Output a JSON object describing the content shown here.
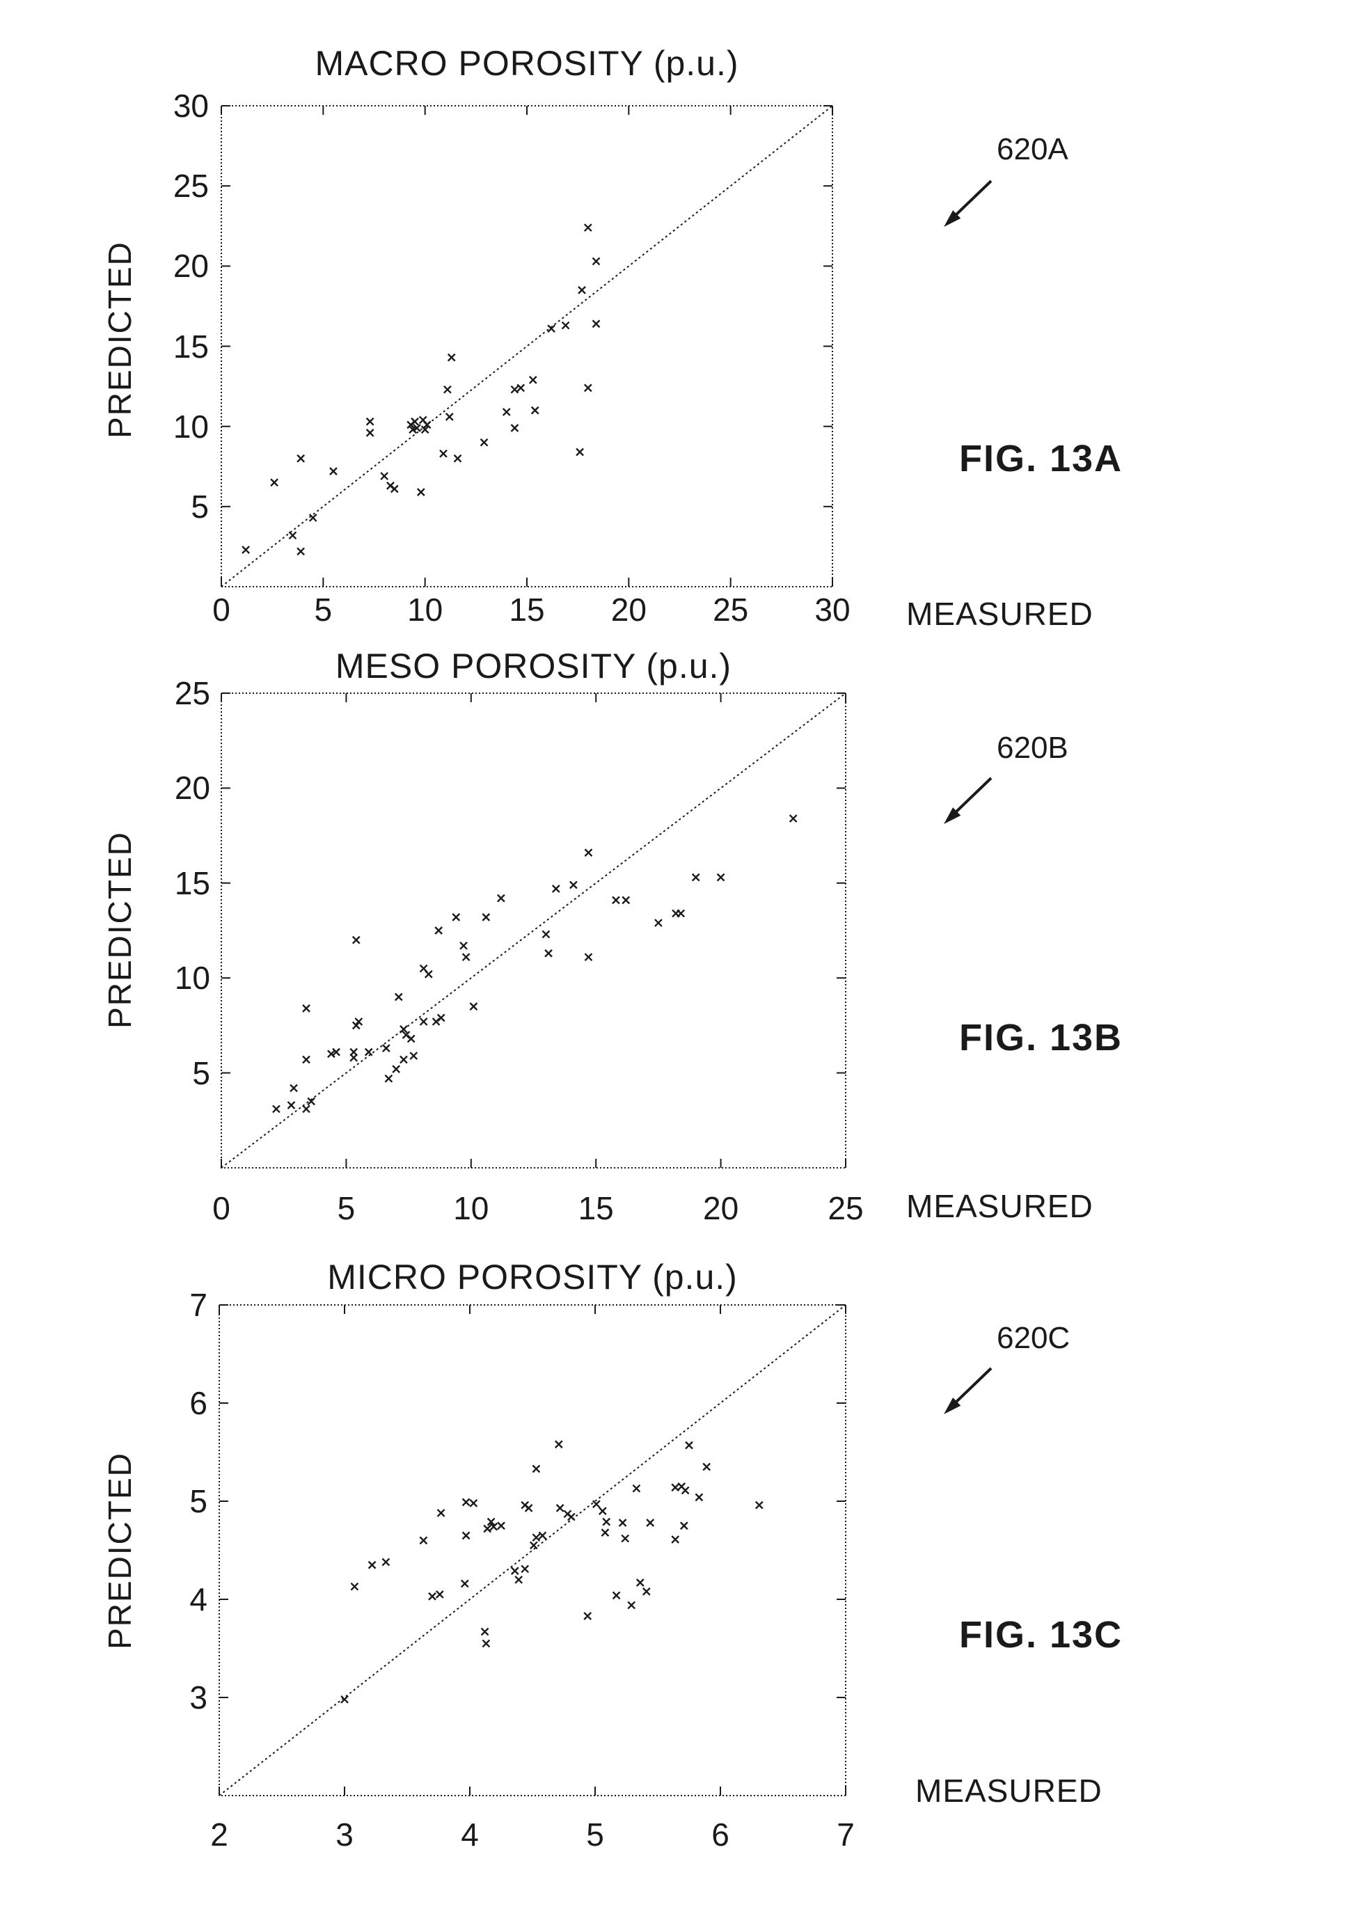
{
  "page": {
    "background": "#ffffff",
    "ink_color": "#1a1a1a"
  },
  "chart_data": [
    {
      "type": "scatter",
      "title": "MACRO POROSITY (p.u.)",
      "xlabel": "MEASURED",
      "ylabel": "PREDICTED",
      "ref_label": "620A",
      "fig_label": "FIG. 13A",
      "xlim": [
        0,
        30
      ],
      "ylim": [
        0,
        30
      ],
      "x_ticks": [
        0,
        5,
        10,
        15,
        20,
        25,
        30
      ],
      "y_ticks": [
        5,
        10,
        15,
        20,
        25,
        30
      ],
      "marker": "x-cross",
      "grid": false,
      "reference_line": "dotted diagonal y = x from (0,0) to (30,30)",
      "points": [
        [
          1.2,
          2.3
        ],
        [
          2.6,
          6.5
        ],
        [
          3.5,
          3.2
        ],
        [
          3.9,
          8.0
        ],
        [
          3.9,
          2.2
        ],
        [
          4.5,
          4.3
        ],
        [
          5.5,
          7.2
        ],
        [
          7.3,
          10.3
        ],
        [
          7.3,
          9.6
        ],
        [
          8.0,
          6.9
        ],
        [
          8.3,
          6.3
        ],
        [
          8.5,
          6.1
        ],
        [
          9.3,
          10.1
        ],
        [
          9.4,
          9.8
        ],
        [
          9.5,
          10.3
        ],
        [
          9.6,
          9.9
        ],
        [
          9.9,
          10.4
        ],
        [
          10.0,
          9.8
        ],
        [
          10.1,
          10.1
        ],
        [
          9.8,
          5.9
        ],
        [
          10.9,
          8.3
        ],
        [
          11.1,
          12.3
        ],
        [
          11.2,
          10.6
        ],
        [
          11.3,
          14.3
        ],
        [
          11.6,
          8.0
        ],
        [
          12.9,
          9.0
        ],
        [
          14.0,
          10.9
        ],
        [
          14.4,
          9.9
        ],
        [
          14.4,
          12.3
        ],
        [
          14.7,
          12.4
        ],
        [
          15.3,
          12.9
        ],
        [
          15.4,
          11.0
        ],
        [
          16.2,
          16.1
        ],
        [
          16.9,
          16.3
        ],
        [
          17.6,
          8.4
        ],
        [
          17.7,
          18.5
        ],
        [
          18.0,
          12.4
        ],
        [
          18.0,
          22.4
        ],
        [
          18.4,
          20.3
        ],
        [
          18.4,
          16.4
        ]
      ]
    },
    {
      "type": "scatter",
      "title": "MESO POROSITY (p.u.)",
      "xlabel": "MEASURED",
      "ylabel": "PREDICTED",
      "ref_label": "620B",
      "fig_label": "FIG. 13B",
      "xlim": [
        0,
        25
      ],
      "ylim": [
        0,
        25
      ],
      "x_ticks": [
        0,
        5,
        10,
        15,
        20,
        25
      ],
      "y_ticks": [
        5,
        10,
        15,
        20,
        25
      ],
      "marker": "x-cross",
      "grid": false,
      "reference_line": "dotted diagonal y = x from (0,0) to (25,25)",
      "points": [
        [
          2.2,
          3.1
        ],
        [
          2.8,
          3.3
        ],
        [
          2.9,
          4.2
        ],
        [
          3.4,
          3.1
        ],
        [
          3.4,
          5.7
        ],
        [
          3.4,
          8.4
        ],
        [
          3.6,
          3.5
        ],
        [
          4.4,
          6.0
        ],
        [
          4.6,
          6.1
        ],
        [
          5.3,
          5.8
        ],
        [
          5.3,
          6.1
        ],
        [
          5.4,
          7.5
        ],
        [
          5.4,
          12.0
        ],
        [
          5.5,
          7.7
        ],
        [
          5.9,
          6.1
        ],
        [
          6.6,
          6.3
        ],
        [
          6.7,
          4.7
        ],
        [
          7.0,
          5.2
        ],
        [
          7.1,
          9.0
        ],
        [
          7.3,
          5.7
        ],
        [
          7.3,
          7.3
        ],
        [
          7.4,
          7.0
        ],
        [
          7.6,
          6.8
        ],
        [
          7.7,
          5.9
        ],
        [
          8.1,
          7.7
        ],
        [
          8.1,
          10.5
        ],
        [
          8.3,
          10.2
        ],
        [
          8.6,
          7.7
        ],
        [
          8.8,
          7.9
        ],
        [
          8.7,
          12.5
        ],
        [
          9.4,
          13.2
        ],
        [
          9.7,
          11.7
        ],
        [
          9.8,
          11.1
        ],
        [
          10.1,
          8.5
        ],
        [
          10.6,
          13.2
        ],
        [
          11.2,
          14.2
        ],
        [
          13.0,
          12.3
        ],
        [
          13.1,
          11.3
        ],
        [
          13.4,
          14.7
        ],
        [
          14.1,
          14.9
        ],
        [
          14.7,
          11.1
        ],
        [
          14.7,
          16.6
        ],
        [
          15.8,
          14.1
        ],
        [
          16.2,
          14.1
        ],
        [
          17.5,
          12.9
        ],
        [
          18.2,
          13.4
        ],
        [
          18.4,
          13.4
        ],
        [
          19.0,
          15.3
        ],
        [
          20.0,
          15.3
        ],
        [
          22.9,
          18.4
        ]
      ]
    },
    {
      "type": "scatter",
      "title": "MICRO POROSITY (p.u.)",
      "xlabel": "MEASURED",
      "ylabel": "PREDICTED",
      "ref_label": "620C",
      "fig_label": "FIG. 13C",
      "xlim": [
        2,
        7
      ],
      "ylim": [
        2,
        7
      ],
      "x_ticks": [
        2,
        3,
        4,
        5,
        6,
        7
      ],
      "y_ticks": [
        3,
        4,
        5,
        6,
        7
      ],
      "marker": "x-cross",
      "grid": false,
      "reference_line": "dotted diagonal y = x from (2,2) to (7,7)",
      "points": [
        [
          3.0,
          2.98
        ],
        [
          3.08,
          4.13
        ],
        [
          3.22,
          4.35
        ],
        [
          3.33,
          4.38
        ],
        [
          3.63,
          4.6
        ],
        [
          3.7,
          4.03
        ],
        [
          3.76,
          4.05
        ],
        [
          3.77,
          4.88
        ],
        [
          3.96,
          4.16
        ],
        [
          3.97,
          4.65
        ],
        [
          3.97,
          4.99
        ],
        [
          4.03,
          4.98
        ],
        [
          4.12,
          3.67
        ],
        [
          4.13,
          3.55
        ],
        [
          4.14,
          4.72
        ],
        [
          4.17,
          4.79
        ],
        [
          4.19,
          4.74
        ],
        [
          4.25,
          4.75
        ],
        [
          4.36,
          4.29
        ],
        [
          4.39,
          4.2
        ],
        [
          4.44,
          4.31
        ],
        [
          4.44,
          4.96
        ],
        [
          4.47,
          4.93
        ],
        [
          4.51,
          4.55
        ],
        [
          4.53,
          4.63
        ],
        [
          4.53,
          5.33
        ],
        [
          4.58,
          4.65
        ],
        [
          4.71,
          5.58
        ],
        [
          4.72,
          4.93
        ],
        [
          4.78,
          4.87
        ],
        [
          4.81,
          4.84
        ],
        [
          4.94,
          3.83
        ],
        [
          5.01,
          4.97
        ],
        [
          5.06,
          4.9
        ],
        [
          5.08,
          4.68
        ],
        [
          5.09,
          4.79
        ],
        [
          5.17,
          4.04
        ],
        [
          5.22,
          4.78
        ],
        [
          5.24,
          4.62
        ],
        [
          5.29,
          3.94
        ],
        [
          5.33,
          5.13
        ],
        [
          5.36,
          4.17
        ],
        [
          5.41,
          4.08
        ],
        [
          5.44,
          4.78
        ],
        [
          5.64,
          4.61
        ],
        [
          5.64,
          5.14
        ],
        [
          5.69,
          5.15
        ],
        [
          5.71,
          4.75
        ],
        [
          5.72,
          5.11
        ],
        [
          5.75,
          5.57
        ],
        [
          5.83,
          5.04
        ],
        [
          5.89,
          5.35
        ],
        [
          6.31,
          4.96
        ]
      ]
    }
  ]
}
